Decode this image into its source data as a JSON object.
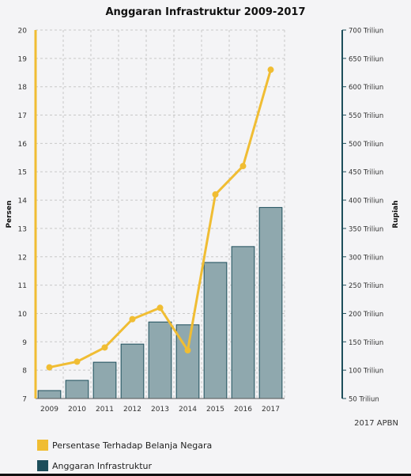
{
  "chart_data": {
    "type": "bar",
    "title": "Anggaran Infrastruktur 2009-2017",
    "categories": [
      "2009",
      "2010",
      "2011",
      "2012",
      "2013",
      "2014",
      "2015",
      "2016",
      "2017"
    ],
    "series": [
      {
        "name": "Anggaran Infrastruktur",
        "type": "bar",
        "axis": "right",
        "color": "#8fa8ae",
        "values": [
          64,
          82,
          114,
          146,
          185,
          180,
          290,
          318,
          387
        ]
      },
      {
        "name": "Persentase Terhadap Belanja Negara",
        "type": "line",
        "axis": "left",
        "color": "#f0bd33",
        "values": [
          8.1,
          8.3,
          8.8,
          9.8,
          10.2,
          8.7,
          14.2,
          15.2,
          18.6
        ]
      }
    ],
    "ylabel_left": "Persen",
    "ylabel_right": "Rupiah",
    "ylim_left": [
      7,
      20
    ],
    "ylim_right": [
      50,
      700
    ],
    "yticks_left": [
      "20",
      "19",
      "18",
      "17",
      "16",
      "15",
      "14",
      "13",
      "12",
      "11",
      "10",
      "9",
      "8",
      "7"
    ],
    "yticks_right": [
      "700 Triliun",
      "650 Triliun",
      "600 Triliun",
      "550 Triliun",
      "500 Triliun",
      "450 Triliun",
      "400 Triliun",
      "350 Triliun",
      "300 Triliun",
      "250 Triliun",
      "200 Triliun",
      "150 Triliun",
      "100 Triliun",
      "50 Triliun"
    ],
    "yticks_right_values": [
      700,
      650,
      600,
      550,
      500,
      450,
      400,
      350,
      300,
      250,
      200,
      150,
      100,
      50
    ],
    "grid": true,
    "legend_position": "bottom-left",
    "colors": {
      "left_axis": "#f0bd33",
      "right_axis": "#1d4e5b",
      "bar_stroke": "#1d4e5b",
      "grid": "#c8c8c8"
    }
  },
  "legend": [
    {
      "label": "Persentase Terhadap Belanja Negara",
      "color": "#f0bd33"
    },
    {
      "label": "Anggaran Infrastruktur",
      "color": "#1d4e5b"
    }
  ],
  "note": "2017 APBN"
}
